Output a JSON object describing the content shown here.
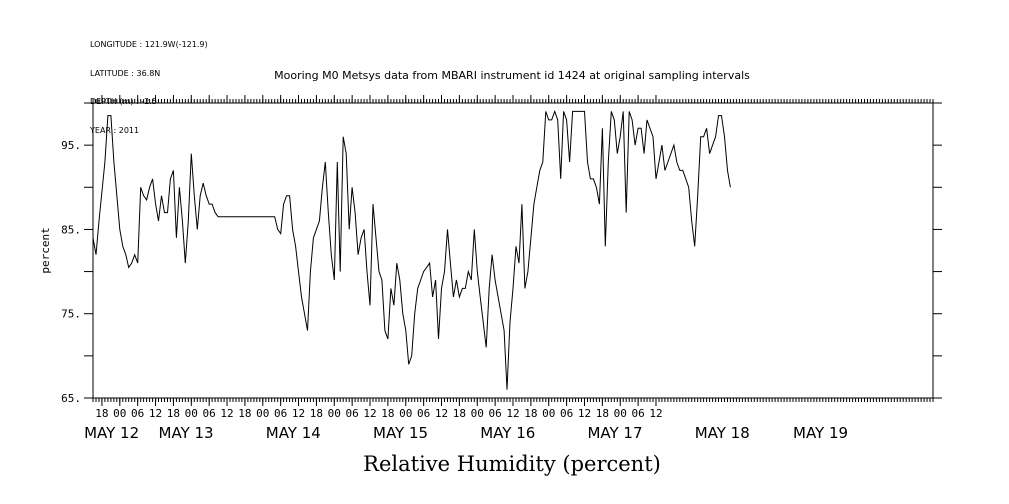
{
  "header": {
    "lines": [
      "LONGITUDE : 121.9W(-121.9)",
      "LATITUDE : 36.8N",
      "DEPTH (m) : -2.5",
      "YEAR : 2011"
    ]
  },
  "chart_data": {
    "type": "line",
    "title": "Mooring M0 Metsys data from MBARI instrument id 1424 at original sampling intervals",
    "xlabel": "Relative Humidity (percent)",
    "ylabel": "percent",
    "ylim": [
      65,
      100
    ],
    "xlim_hours": [
      -9,
      273
    ],
    "y_ticks": [
      65,
      70,
      75,
      80,
      85,
      90,
      95,
      100
    ],
    "y_tick_labels": [
      "65.",
      "75.",
      "85.",
      "95."
    ],
    "x_tick_labels": [
      "18",
      "00",
      "06",
      "12",
      "18",
      "00",
      "06",
      "12",
      "18",
      "00",
      "06",
      "12",
      "18",
      "00",
      "06",
      "12",
      "18",
      "00",
      "06",
      "12",
      "18",
      "00",
      "06",
      "12",
      "18",
      "00",
      "06",
      "12",
      "18",
      "00",
      "06",
      "12"
    ],
    "x_tick_hours": [
      -6,
      0,
      6,
      12,
      18,
      24,
      30,
      36,
      42,
      48,
      54,
      60,
      66,
      72,
      78,
      84,
      90,
      96,
      102,
      108,
      114,
      120,
      126,
      132,
      138,
      144,
      150,
      156,
      162,
      168,
      174,
      180
    ],
    "date_labels": [
      "MAY 12",
      "MAY 13",
      "MAY 14",
      "MAY 15",
      "MAY 16",
      "MAY 17",
      "MAY 18",
      "MAY 19"
    ],
    "date_label_hours": [
      -12,
      13,
      49,
      85,
      121,
      157,
      193,
      226
    ],
    "series": [
      {
        "color": "#000000",
        "points": [
          [
            -9,
            84
          ],
          [
            -8,
            82
          ],
          [
            -7,
            86
          ],
          [
            -5,
            93
          ],
          [
            -4,
            98.5
          ],
          [
            -3,
            98.5
          ],
          [
            -2,
            93
          ],
          [
            0,
            85
          ],
          [
            1,
            83
          ],
          [
            2,
            82
          ],
          [
            3,
            80.5
          ],
          [
            4,
            81
          ],
          [
            5,
            82
          ],
          [
            6,
            81
          ],
          [
            7,
            90
          ],
          [
            8,
            89
          ],
          [
            9,
            88.5
          ],
          [
            10,
            90
          ],
          [
            11,
            91
          ],
          [
            12,
            88
          ],
          [
            13,
            86
          ],
          [
            14,
            89
          ],
          [
            15,
            87
          ],
          [
            16,
            87
          ],
          [
            17,
            91
          ],
          [
            18,
            92
          ],
          [
            19,
            84
          ],
          [
            20,
            90
          ],
          [
            21,
            86
          ],
          [
            22,
            81
          ],
          [
            23,
            86
          ],
          [
            24,
            94
          ],
          [
            25,
            89
          ],
          [
            26,
            85
          ],
          [
            27,
            89
          ],
          [
            28,
            90.5
          ],
          [
            29,
            89
          ],
          [
            30,
            88
          ],
          [
            31,
            88
          ],
          [
            32,
            87
          ],
          [
            33,
            86.5
          ],
          [
            34,
            86.5
          ],
          [
            40,
            86.5
          ],
          [
            46,
            86.5
          ],
          [
            52,
            86.5
          ],
          [
            53,
            85
          ],
          [
            54,
            84.5
          ],
          [
            55,
            88
          ],
          [
            56,
            89
          ],
          [
            57,
            89
          ],
          [
            58,
            85
          ],
          [
            59,
            83
          ],
          [
            60,
            80
          ],
          [
            61,
            77
          ],
          [
            62,
            75
          ],
          [
            63,
            73
          ],
          [
            64,
            80
          ],
          [
            65,
            84
          ],
          [
            66,
            85
          ],
          [
            67,
            86
          ],
          [
            68,
            90
          ],
          [
            69,
            93
          ],
          [
            70,
            87
          ],
          [
            71,
            82
          ],
          [
            72,
            79
          ],
          [
            73,
            93
          ],
          [
            74,
            80
          ],
          [
            75,
            96
          ],
          [
            76,
            94
          ],
          [
            77,
            85
          ],
          [
            78,
            90
          ],
          [
            79,
            87
          ],
          [
            80,
            82
          ],
          [
            81,
            84
          ],
          [
            82,
            85
          ],
          [
            83,
            80
          ],
          [
            84,
            76
          ],
          [
            85,
            88
          ],
          [
            86,
            84
          ],
          [
            87,
            80
          ],
          [
            88,
            79
          ],
          [
            89,
            73
          ],
          [
            90,
            72
          ],
          [
            91,
            78
          ],
          [
            92,
            76
          ],
          [
            93,
            81
          ],
          [
            94,
            79
          ],
          [
            95,
            75
          ],
          [
            96,
            73
          ],
          [
            97,
            69
          ],
          [
            98,
            70
          ],
          [
            99,
            75
          ],
          [
            100,
            78
          ],
          [
            101,
            79
          ],
          [
            102,
            80
          ],
          [
            103,
            80.5
          ],
          [
            104,
            81
          ],
          [
            105,
            77
          ],
          [
            106,
            79
          ],
          [
            107,
            72
          ],
          [
            108,
            78
          ],
          [
            109,
            80
          ],
          [
            110,
            85
          ],
          [
            111,
            81
          ],
          [
            112,
            77
          ],
          [
            113,
            79
          ],
          [
            114,
            77
          ],
          [
            115,
            78
          ],
          [
            116,
            78
          ],
          [
            117,
            80
          ],
          [
            118,
            79
          ],
          [
            119,
            85
          ],
          [
            120,
            80
          ],
          [
            121,
            77
          ],
          [
            122,
            74
          ],
          [
            123,
            71
          ],
          [
            124,
            78
          ],
          [
            125,
            82
          ],
          [
            126,
            79
          ],
          [
            127,
            77
          ],
          [
            128,
            75
          ],
          [
            129,
            73
          ],
          [
            130,
            66
          ],
          [
            131,
            74
          ],
          [
            132,
            78
          ],
          [
            133,
            83
          ],
          [
            134,
            81
          ],
          [
            135,
            88
          ],
          [
            136,
            78
          ],
          [
            137,
            80
          ],
          [
            138,
            84
          ],
          [
            139,
            88
          ],
          [
            140,
            90
          ],
          [
            141,
            92
          ],
          [
            142,
            93
          ],
          [
            143,
            99
          ],
          [
            144,
            98
          ],
          [
            145,
            98
          ],
          [
            146,
            99
          ],
          [
            147,
            98
          ],
          [
            148,
            91
          ],
          [
            149,
            99
          ],
          [
            150,
            98
          ],
          [
            151,
            93
          ],
          [
            152,
            99
          ],
          [
            154,
            99
          ],
          [
            156,
            99
          ],
          [
            157,
            93
          ],
          [
            158,
            91
          ],
          [
            159,
            91
          ],
          [
            160,
            90
          ],
          [
            161,
            88
          ],
          [
            162,
            97
          ],
          [
            163,
            83
          ],
          [
            164,
            93
          ],
          [
            165,
            99
          ],
          [
            166,
            98
          ],
          [
            167,
            94
          ],
          [
            168,
            96
          ],
          [
            169,
            99
          ],
          [
            170,
            87
          ],
          [
            171,
            99
          ],
          [
            172,
            98
          ],
          [
            173,
            95
          ],
          [
            174,
            97
          ],
          [
            175,
            97
          ],
          [
            176,
            94
          ],
          [
            177,
            98
          ],
          [
            178,
            97
          ],
          [
            179,
            96
          ],
          [
            180,
            91
          ],
          [
            181,
            93
          ],
          [
            182,
            95
          ],
          [
            183,
            92
          ],
          [
            184,
            93
          ],
          [
            185,
            94
          ],
          [
            186,
            95
          ],
          [
            187,
            93
          ],
          [
            188,
            92
          ],
          [
            189,
            92
          ],
          [
            190,
            91
          ],
          [
            191,
            90
          ],
          [
            192,
            86
          ],
          [
            193,
            83
          ],
          [
            194,
            89
          ],
          [
            195,
            96
          ],
          [
            196,
            96
          ],
          [
            197,
            97
          ],
          [
            198,
            94
          ],
          [
            199,
            95
          ],
          [
            200,
            96
          ],
          [
            201,
            98.5
          ],
          [
            202,
            98.5
          ],
          [
            203,
            96
          ],
          [
            204,
            92
          ],
          [
            205,
            90
          ]
        ]
      }
    ],
    "grid": false,
    "legend": "none"
  }
}
